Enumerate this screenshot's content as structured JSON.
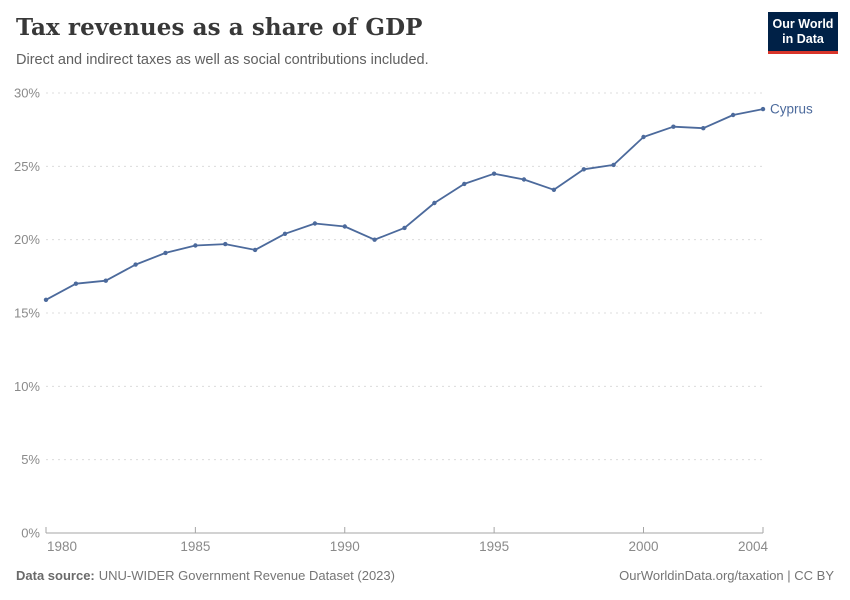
{
  "header": {
    "title": "Tax revenues as a share of GDP",
    "subtitle": "Direct and indirect taxes as well as social contributions included.",
    "logo": {
      "line1": "Our World",
      "line2": "in Data"
    }
  },
  "chart_data": {
    "type": "line",
    "title": "Tax revenues as a share of GDP",
    "x": [
      1980,
      1981,
      1982,
      1983,
      1984,
      1985,
      1986,
      1987,
      1988,
      1989,
      1990,
      1991,
      1992,
      1993,
      1994,
      1995,
      1996,
      1997,
      1998,
      1999,
      2000,
      2001,
      2002,
      2003,
      2004
    ],
    "series": [
      {
        "name": "Cyprus",
        "color": "#4c6a9c",
        "values": [
          15.9,
          17.0,
          17.2,
          18.3,
          19.1,
          19.6,
          19.7,
          19.3,
          20.4,
          21.1,
          20.9,
          20.0,
          20.8,
          22.5,
          23.8,
          24.5,
          24.1,
          23.4,
          24.8,
          25.1,
          27.0,
          27.7,
          27.6,
          28.5,
          28.9
        ]
      }
    ],
    "xlim": [
      1980,
      2004
    ],
    "ylim": [
      0,
      30
    ],
    "x_ticks": [
      1980,
      1985,
      1990,
      1995,
      2000,
      2004
    ],
    "y_ticks": [
      0,
      5,
      10,
      15,
      20,
      25,
      30
    ],
    "y_tick_suffix": "%",
    "grid": "horizontal-dashed",
    "legend_position": "end-of-line-label"
  },
  "footer": {
    "source_label": "Data source:",
    "source_text": "UNU-WIDER Government Revenue Dataset (2023)",
    "credit": "OurWorldinData.org/taxation | CC BY"
  },
  "colors": {
    "line": "#4c6a9c",
    "logo_bg": "#002147",
    "logo_underline": "#d8352a",
    "grid": "#dcdcdc",
    "axis": "#a5a5a5",
    "tick_label": "#8a8a8a"
  }
}
